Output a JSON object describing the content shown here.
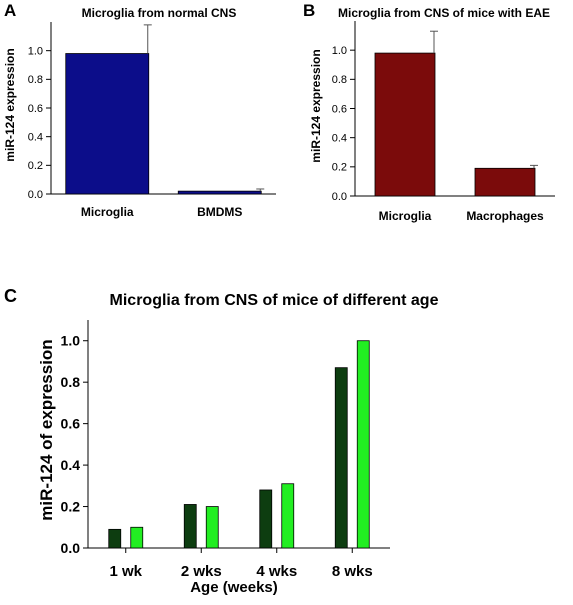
{
  "colors": {
    "navy": "#0c0d8a",
    "maroon": "#7b0b0b",
    "dark_green": "#0d3d10",
    "light_green": "#22ee22",
    "axis": "#000000"
  },
  "chart_data": [
    {
      "panel_label": "A",
      "type": "bar",
      "title": "Microglia from normal CNS",
      "ylabel": "miR-124 expression",
      "xlabel": "",
      "categories": [
        "Microglia",
        "BMDMS"
      ],
      "values": [
        0.98,
        0.02
      ],
      "errors": [
        0.2,
        0.015
      ],
      "ylim": [
        0,
        1.2
      ],
      "yticks": [
        "0.0",
        "0.2",
        "0.4",
        "0.6",
        "0.8",
        "1.0"
      ],
      "bar_color": "#0c0d8a",
      "grid": false
    },
    {
      "panel_label": "B",
      "type": "bar",
      "title": "Microglia from CNS of mice with EAE",
      "ylabel": "miR-124 expression",
      "xlabel": "",
      "categories": [
        "Microglia",
        "Macrophages"
      ],
      "values": [
        0.98,
        0.19
      ],
      "errors": [
        0.15,
        0.02
      ],
      "ylim": [
        0,
        1.2
      ],
      "yticks": [
        "0.0",
        "0.2",
        "0.4",
        "0.6",
        "0.8",
        "1.0"
      ],
      "bar_color": "#7b0b0b",
      "grid": false
    },
    {
      "panel_label": "C",
      "type": "bar",
      "title": "Microglia from CNS of mice of different age",
      "ylabel": "miR-124 of expression",
      "xlabel": "Age (weeks)",
      "categories": [
        "1 wk",
        "2 wks",
        "4 wks",
        "8 wks"
      ],
      "series": [
        {
          "values": [
            0.09,
            0.21,
            0.28,
            0.87
          ],
          "color": "#0d3d10"
        },
        {
          "values": [
            0.1,
            0.2,
            0.31,
            1.0
          ],
          "color": "#22ee22"
        }
      ],
      "ylim": [
        0,
        1.1
      ],
      "yticks": [
        "0.0",
        "0.2",
        "0.4",
        "0.6",
        "0.8",
        "1.0"
      ],
      "legend": "none",
      "grid": false
    }
  ]
}
